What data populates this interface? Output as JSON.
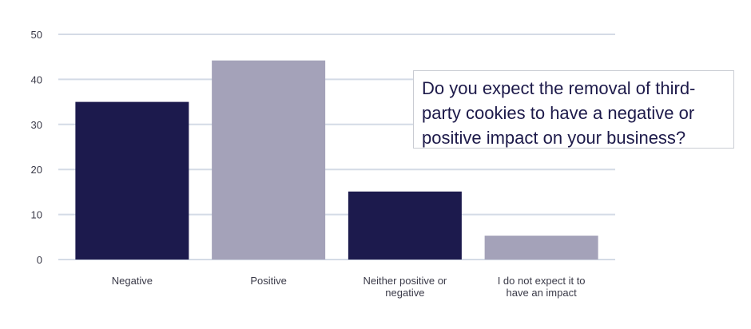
{
  "chart_data": {
    "type": "bar",
    "title": "Do you expect the removal of third-party cookies to have a negative or positive impact on your business?",
    "categories": [
      "Negative",
      "Positive",
      "Neither positive or negative",
      "I do not expect it to have an impact"
    ],
    "category_lines": [
      [
        "Negative"
      ],
      [
        "Positive"
      ],
      [
        "Neither positive or",
        "negative"
      ],
      [
        "I do not expect it to",
        "have an impact"
      ]
    ],
    "values": [
      35,
      44.2,
      15.1,
      5.3
    ],
    "bar_colors": [
      "#1c1a4d",
      "#a4a2b9",
      "#1c1a4d",
      "#a4a2b9"
    ],
    "grid_color": "#d4dbe6",
    "ylim": [
      0,
      50
    ],
    "yticks": [
      0,
      10,
      20,
      30,
      40,
      50
    ],
    "xlabel": "",
    "ylabel": "",
    "grid": true,
    "legend": "none"
  },
  "question_lines": [
    "Do you expect the removal of third-",
    "party cookies to have a negative or",
    "positive impact on your business?"
  ]
}
